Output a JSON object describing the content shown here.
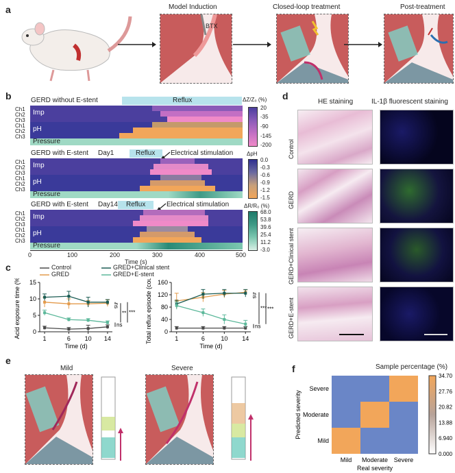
{
  "panels": {
    "a": "a",
    "b": "b",
    "c": "c",
    "d": "d",
    "e": "e",
    "f": "f"
  },
  "panel_a": {
    "steps": [
      "Model Induction",
      "Closed-loop treatment",
      "Post-treatment"
    ],
    "btx_label": "BTX"
  },
  "panel_b": {
    "block1": {
      "title": "GERD without E-stent",
      "reflux": "Reflux",
      "imp": "Imp",
      "ph": "pH",
      "pressure": "Pressure"
    },
    "block2": {
      "title": "GERD with E-stent",
      "day": "Day1",
      "reflux": "Reflux",
      "stim": "Electrical stimulation",
      "imp": "Imp",
      "ph": "pH",
      "pressure": "Pressure"
    },
    "block3": {
      "title": "GERD with E-stent",
      "day": "Day14",
      "reflux": "Reflux",
      "stim": "Electrical stimulation",
      "imp": "Imp",
      "ph": "pH",
      "pressure": "Pressure"
    },
    "channels": [
      "Ch1",
      "Ch2",
      "Ch3"
    ],
    "cb1": {
      "title": "ΔZ/Z₀ (%)",
      "ticks": [
        "20",
        "-35",
        "-90",
        "-145",
        "-200"
      ]
    },
    "cb2": {
      "title": "ΔpH",
      "ticks": [
        "0.0",
        "-0.3",
        "-0.6",
        "-0.9",
        "-1.2",
        "-1.5"
      ]
    },
    "cb3": {
      "title": "ΔR/R₀ (%)",
      "ticks": [
        "68.0",
        "53.8",
        "39.6",
        "25.4",
        "11.2",
        "-3.0"
      ]
    },
    "xaxis": {
      "label": "Time (s)",
      "ticks": [
        "0",
        "100",
        "200",
        "300",
        "400",
        "500"
      ]
    },
    "colors": {
      "imp_low": "#4b3f9e",
      "imp_high": "#f08ac8",
      "ph_low": "#3a3a9a",
      "ph_high": "#f2a65a",
      "pressure_low": "#9fd9c4",
      "pressure_high": "#1f7a6a"
    }
  },
  "panel_c": {
    "legend": [
      "Control",
      "GRED",
      "GRED+Clinical stent",
      "GRED+E-stent"
    ],
    "colors": [
      "#4a4a4a",
      "#e39a4b",
      "#1a5b52",
      "#5cb89a"
    ]
  },
  "chart_data": [
    {
      "type": "line",
      "title": "",
      "xlabel": "Time (d)",
      "ylabel": "Acid exposure time (%)",
      "x": [
        1,
        6,
        10,
        14
      ],
      "xticks": [
        "1",
        "6",
        "10",
        "14"
      ],
      "ylim": [
        0,
        15
      ],
      "yticks": [
        "0",
        "5",
        "10",
        "15"
      ],
      "series": [
        {
          "name": "Control",
          "values": [
            1.2,
            0.8,
            1.0,
            1.5
          ],
          "err": [
            0.5,
            0.5,
            1.0,
            0.6
          ]
        },
        {
          "name": "GRED",
          "values": [
            9.0,
            8.5,
            8.5,
            8.7
          ],
          "err": [
            1.5,
            1.5,
            1.0,
            1.0
          ]
        },
        {
          "name": "GRED+Clinical stent",
          "values": [
            10.5,
            10.8,
            9.0,
            9.0
          ],
          "err": [
            1.0,
            1.5,
            1.5,
            0.8
          ]
        },
        {
          "name": "GRED+E-stent",
          "values": [
            5.8,
            3.7,
            3.5,
            2.8
          ],
          "err": [
            0.8,
            0.5,
            0.5,
            0.5
          ]
        }
      ],
      "annotations": [
        "ns",
        "**",
        "***",
        "ns"
      ]
    },
    {
      "type": "line",
      "title": "",
      "xlabel": "Time (d)",
      "ylabel": "Total reflux episode (count)",
      "x": [
        1,
        6,
        10,
        14
      ],
      "xticks": [
        "1",
        "6",
        "10",
        "14"
      ],
      "ylim": [
        0,
        160
      ],
      "yticks": [
        "0",
        "40",
        "80",
        "120",
        "160"
      ],
      "series": [
        {
          "name": "Control",
          "values": [
            12,
            12,
            12,
            12
          ],
          "err": [
            5,
            5,
            5,
            5
          ]
        },
        {
          "name": "GRED",
          "values": [
            100,
            112,
            122,
            128
          ],
          "err": [
            25,
            15,
            12,
            8
          ]
        },
        {
          "name": "GRED+Clinical stent",
          "values": [
            90,
            122,
            125,
            125
          ],
          "err": [
            12,
            15,
            12,
            12
          ]
        },
        {
          "name": "GRED+E-stent",
          "values": [
            85,
            62,
            40,
            25
          ],
          "err": [
            12,
            12,
            15,
            12
          ]
        }
      ],
      "annotations": [
        "ns",
        "***",
        "***",
        "ns"
      ]
    },
    {
      "type": "heatmap",
      "title": "Sample percentage (%)",
      "xlabel": "Real severity",
      "ylabel": "Predicted severity",
      "categories": [
        "Mild",
        "Moderate",
        "Severe"
      ],
      "values": [
        [
          0,
          0,
          34.7
        ],
        [
          0,
          34.7,
          0
        ],
        [
          34.7,
          0,
          0
        ]
      ],
      "colorbar_ticks": [
        "34.70",
        "27.76",
        "20.82",
        "13.88",
        "6.940",
        "0.000"
      ]
    }
  ],
  "panel_d": {
    "col_titles": [
      "HE staining",
      "IL-1β fluorescent staining"
    ],
    "rows": [
      "Control",
      "GERD",
      "GERD+Clinical stent",
      "GERD+E-stent"
    ]
  },
  "panel_e": {
    "mild": "Mild",
    "severe": "Severe"
  }
}
